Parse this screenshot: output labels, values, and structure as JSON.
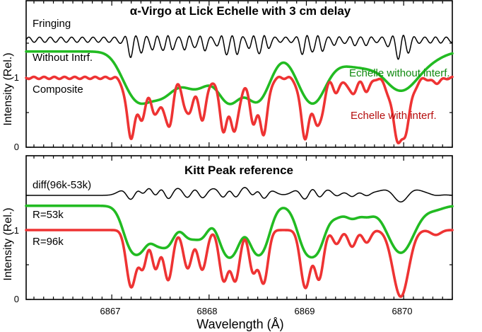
{
  "chart_data": [
    {
      "type": "line",
      "title": "α-Virgo at Lick Echelle with 3 cm delay",
      "xlabel": "Wavelength (Å)",
      "ylabel": "Intensity (Rel.)",
      "xlim": [
        6866.12,
        6870.5
      ],
      "ylim": [
        0,
        2.0
      ],
      "yticks": [
        0,
        1
      ],
      "grid": false,
      "series": [
        {
          "key": "fringing",
          "name": "Fringing",
          "color": "#000000",
          "baseline": 1.55,
          "fringe": 0.15
        },
        {
          "key": "smooth",
          "name": "Without Intrf.",
          "color": "#22bb22",
          "baseline": 1.38
        },
        {
          "key": "composite",
          "name": "Composite",
          "color": "#ee3333",
          "baseline": 1.0
        }
      ],
      "annotations": [
        {
          "text": "Echelle without interf.",
          "color": "#108a10"
        },
        {
          "text": "Echelle with interf.",
          "color": "#b50e0e"
        }
      ]
    },
    {
      "type": "line",
      "title": "Kitt Peak reference",
      "xlabel": "Wavelength (Å)",
      "ylabel": "Intensity (Rel.)",
      "xlim": [
        6866.12,
        6870.5
      ],
      "ylim": [
        0,
        2.0
      ],
      "xticks": [
        6867,
        6868,
        6869,
        6870
      ],
      "yticks": [
        0,
        1
      ],
      "grid": false,
      "series": [
        {
          "key": "diff",
          "name": "diff(96k-53k)",
          "color": "#000000",
          "baseline": 1.5
        },
        {
          "key": "r53",
          "name": "R=53k",
          "color": "#22bb22",
          "baseline": 1.35
        },
        {
          "key": "r96",
          "name": "R=96k",
          "color": "#ee3333",
          "baseline": 1.0
        }
      ]
    }
  ],
  "absorption_lines": [
    {
      "center": 6867.2,
      "depth": 0.82,
      "width": 0.05
    },
    {
      "center": 6867.32,
      "depth": 0.52,
      "width": 0.04
    },
    {
      "center": 6867.45,
      "depth": 0.55,
      "width": 0.04
    },
    {
      "center": 6867.58,
      "depth": 0.72,
      "width": 0.045
    },
    {
      "center": 6867.78,
      "depth": 0.55,
      "width": 0.045
    },
    {
      "center": 6867.93,
      "depth": 0.57,
      "width": 0.045
    },
    {
      "center": 6868.15,
      "depth": 0.72,
      "width": 0.045
    },
    {
      "center": 6868.27,
      "depth": 0.72,
      "width": 0.045
    },
    {
      "center": 6868.45,
      "depth": 0.58,
      "width": 0.04
    },
    {
      "center": 6868.56,
      "depth": 0.76,
      "width": 0.045
    },
    {
      "center": 6868.99,
      "depth": 0.83,
      "width": 0.05
    },
    {
      "center": 6869.13,
      "depth": 0.7,
      "width": 0.045
    },
    {
      "center": 6869.31,
      "depth": 0.2,
      "width": 0.04
    },
    {
      "center": 6869.47,
      "depth": 0.24,
      "width": 0.04
    },
    {
      "center": 6869.62,
      "depth": 0.18,
      "width": 0.04
    },
    {
      "center": 6869.97,
      "depth": 0.96,
      "width": 0.08
    },
    {
      "center": 6870.33,
      "depth": 0.07,
      "width": 0.05
    }
  ]
}
